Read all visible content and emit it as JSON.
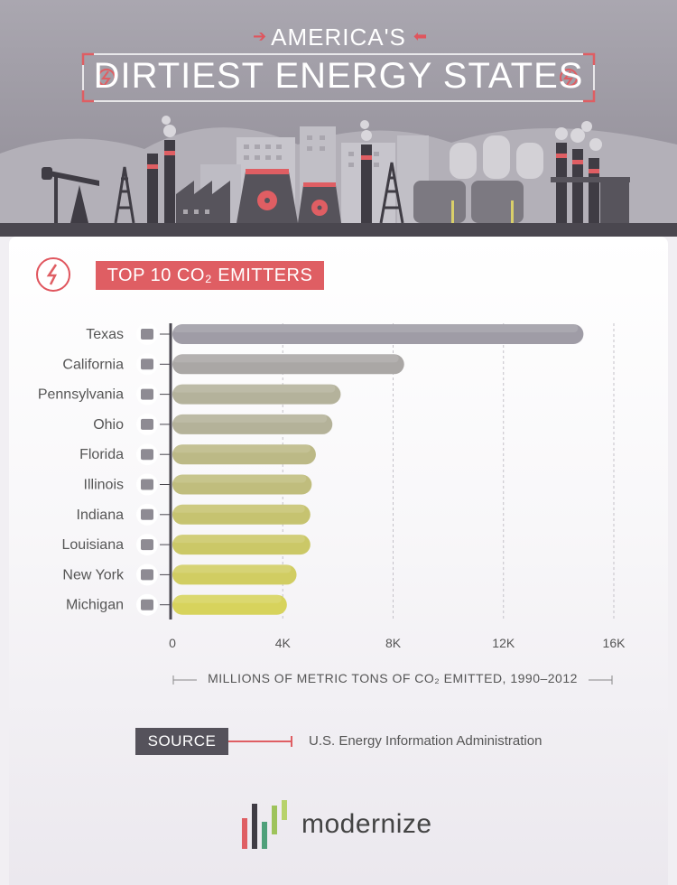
{
  "header": {
    "title_top": "AMERICA'S",
    "title_main": "DIRTIEST ENERGY STATES"
  },
  "section": {
    "title": "TOP 10 CO₂ EMITTERS",
    "icon": "lightning-bolt-icon"
  },
  "chart_data": {
    "type": "bar",
    "orientation": "horizontal",
    "categories": [
      "Texas",
      "California",
      "Pennsylvania",
      "Ohio",
      "Florida",
      "Illinois",
      "Indiana",
      "Louisiana",
      "New York",
      "Michigan"
    ],
    "values": [
      14900,
      8400,
      6100,
      5800,
      5200,
      5050,
      5000,
      5000,
      4500,
      4150
    ],
    "xlabel": "MILLIONS OF METRIC TONS OF CO₂ EMITTED, 1990–2012",
    "xlim": [
      0,
      16000
    ],
    "xticks": [
      0,
      4000,
      8000,
      12000,
      16000
    ],
    "xtick_labels": [
      "0",
      "4K",
      "8K",
      "12K",
      "16K"
    ],
    "grid": "vertical dashed",
    "bar_colors": [
      "#9f9ca6",
      "#aaa7a5",
      "#b4b29b",
      "#b4b299",
      "#bcb986",
      "#c0bd7d",
      "#c6c370",
      "#cbc867",
      "#d1cd62",
      "#d7d35c"
    ],
    "icons": [
      "texas-state-icon",
      "california-state-icon",
      "pennsylvania-state-icon",
      "ohio-state-icon",
      "florida-state-icon",
      "illinois-state-icon",
      "indiana-state-icon",
      "louisiana-state-icon",
      "new-york-state-icon",
      "michigan-state-icon"
    ]
  },
  "source": {
    "label": "SOURCE",
    "text": "U.S. Energy Information Administration"
  },
  "brand": {
    "name": "modernize"
  },
  "colors": {
    "accent": "#df5e63",
    "header_bg": "#9a97a1",
    "dark": "#55525b"
  }
}
